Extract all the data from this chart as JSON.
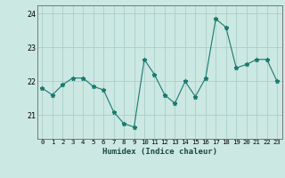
{
  "x": [
    0,
    1,
    2,
    3,
    4,
    5,
    6,
    7,
    8,
    9,
    10,
    11,
    12,
    13,
    14,
    15,
    16,
    17,
    18,
    19,
    20,
    21,
    22,
    23
  ],
  "y": [
    21.8,
    21.6,
    21.9,
    22.1,
    22.1,
    21.85,
    21.75,
    21.1,
    20.75,
    20.65,
    22.65,
    22.2,
    21.6,
    21.35,
    22.0,
    21.55,
    22.1,
    23.85,
    23.6,
    22.4,
    22.5,
    22.65,
    22.65,
    22.0
  ],
  "line_color": "#1a7a6e",
  "marker": "*",
  "marker_size": 3.5,
  "bg_color": "#cce8e2",
  "grid_color": "#aacec8",
  "axis_color": "#777777",
  "xlabel": "Humidex (Indice chaleur)",
  "ylim": [
    20.3,
    24.25
  ],
  "yticks": [
    21,
    22,
    23,
    24
  ],
  "figsize": [
    3.2,
    2.0
  ],
  "dpi": 100
}
